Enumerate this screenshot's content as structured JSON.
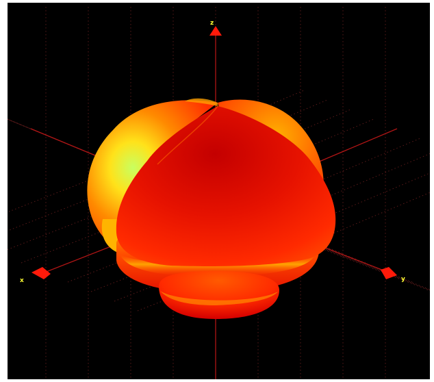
{
  "viewer": {
    "background": "#000000",
    "frame_background": "#ffffff",
    "grid_color": "#5a1a1a",
    "axis_line_color": "#b01515",
    "axis_marker_color": "#ff1a0a",
    "axis_label_color": "#ffff33",
    "axis_labels": {
      "z": "z",
      "x": "x",
      "y": "y"
    },
    "surface_colormap": [
      "#c80000",
      "#ff2a00",
      "#ff7a00",
      "#ffd000",
      "#c8ff60"
    ]
  }
}
